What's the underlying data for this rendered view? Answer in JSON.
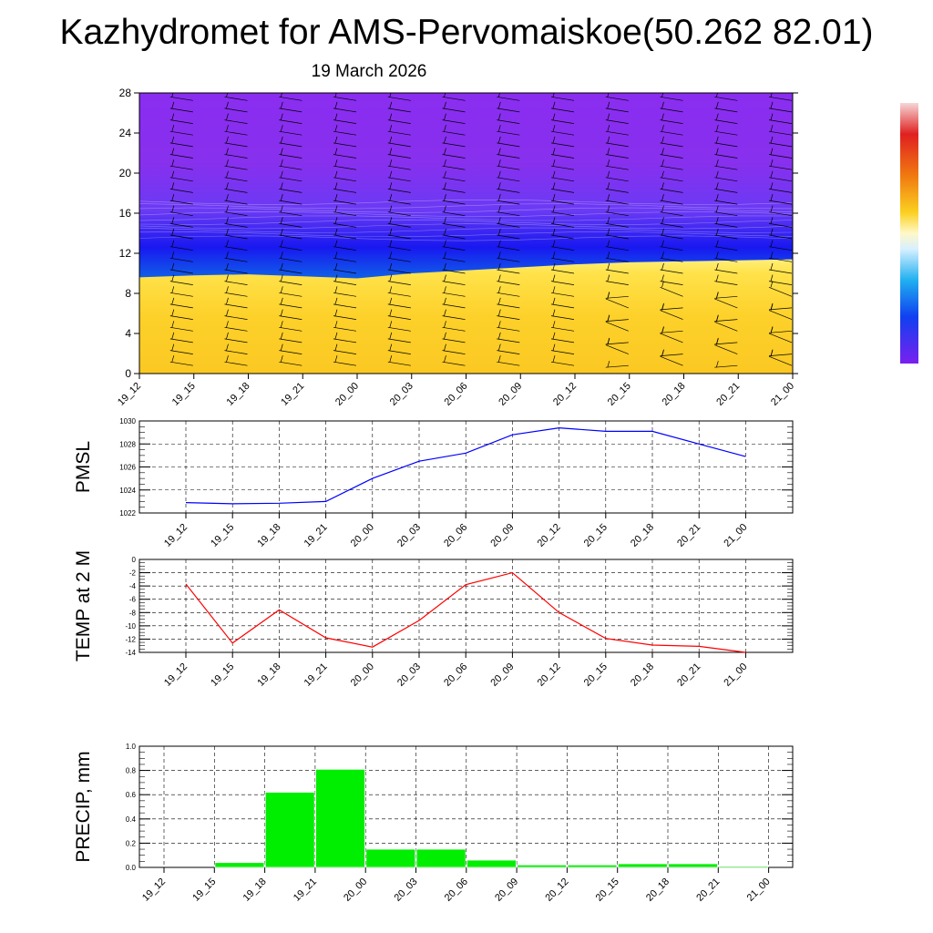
{
  "header": {
    "title": "Kazhydromet for AMS-Pervomaiskoe(50.262 82.01)",
    "date": "19 March 2026"
  },
  "colors": {
    "pmsl_line": "#0000ff",
    "temp_line": "#ff0000",
    "precip_bar": "#00ee00",
    "grid": "#000000"
  },
  "time_labels": [
    "19_12",
    "19_15",
    "19_18",
    "19_21",
    "20_00",
    "20_03",
    "20_06",
    "20_09",
    "20_12",
    "20_15",
    "20_18",
    "20_21",
    "21_00"
  ],
  "chart_data": [
    {
      "id": "cross_section",
      "type": "heatmap",
      "title": "",
      "ylabel": "",
      "ylim": [
        0,
        28
      ],
      "yticks": [
        0,
        4,
        8,
        12,
        16,
        20,
        24,
        28
      ],
      "categories": [
        "19_12",
        "19_15",
        "19_18",
        "19_21",
        "20_00",
        "20_03",
        "20_06",
        "20_09",
        "20_12",
        "20_15",
        "20_18",
        "20_21",
        "21_00"
      ],
      "warm_layer_top": [
        9.6,
        9.8,
        9.9,
        9.7,
        9.5,
        10.0,
        10.3,
        10.6,
        10.9,
        11.1,
        11.2,
        11.3,
        11.4
      ],
      "overlay": "wind barbs",
      "colorbar": "blue-cyan-white-yellow-orange-red"
    },
    {
      "id": "pmsl",
      "type": "line",
      "ylabel": "PMSL",
      "ylim": [
        1022,
        1030
      ],
      "yticks": [
        1022,
        1024,
        1026,
        1028,
        1030
      ],
      "categories": [
        "19_12",
        "19_15",
        "19_18",
        "19_21",
        "20_00",
        "20_03",
        "20_06",
        "20_09",
        "20_12",
        "20_15",
        "20_18",
        "20_21",
        "21_00"
      ],
      "values": [
        1022.9,
        1022.8,
        1022.85,
        1023.0,
        1025.0,
        1026.5,
        1027.2,
        1028.8,
        1029.4,
        1029.1,
        1029.1,
        1028.0,
        1026.9
      ]
    },
    {
      "id": "temp",
      "type": "line",
      "ylabel": "TEMP at 2 M",
      "ylim": [
        -14,
        0
      ],
      "yticks": [
        0,
        -2,
        -4,
        -6,
        -8,
        -10,
        -12,
        -14
      ],
      "categories": [
        "19_12",
        "19_15",
        "19_18",
        "19_21",
        "20_00",
        "20_03",
        "20_06",
        "20_09",
        "20_12",
        "20_15",
        "20_18",
        "20_21",
        "21_00"
      ],
      "values": [
        -3.7,
        -12.6,
        -7.6,
        -11.8,
        -13.2,
        -9.2,
        -3.8,
        -2.0,
        -8.0,
        -11.9,
        -12.9,
        -13.1,
        -14.0
      ]
    },
    {
      "id": "precip",
      "type": "bar",
      "ylabel": "PRECIP, mm",
      "ylim": [
        0,
        1.0
      ],
      "yticks": [
        0.0,
        0.2,
        0.4,
        0.6,
        0.8,
        1.0
      ],
      "ytick_labels": [
        "0.0",
        "0.2",
        "0.4",
        "0.6",
        "0.8",
        "1.0"
      ],
      "categories": [
        "19_12",
        "19_15",
        "19_18",
        "19_21",
        "20_00",
        "20_03",
        "20_06",
        "20_09",
        "20_12",
        "20_15",
        "20_18",
        "20_21",
        "21_00"
      ],
      "values": [
        0.0,
        0.04,
        0.62,
        0.81,
        0.15,
        0.15,
        0.06,
        0.02,
        0.02,
        0.03,
        0.03,
        0.01,
        0.0
      ]
    }
  ]
}
